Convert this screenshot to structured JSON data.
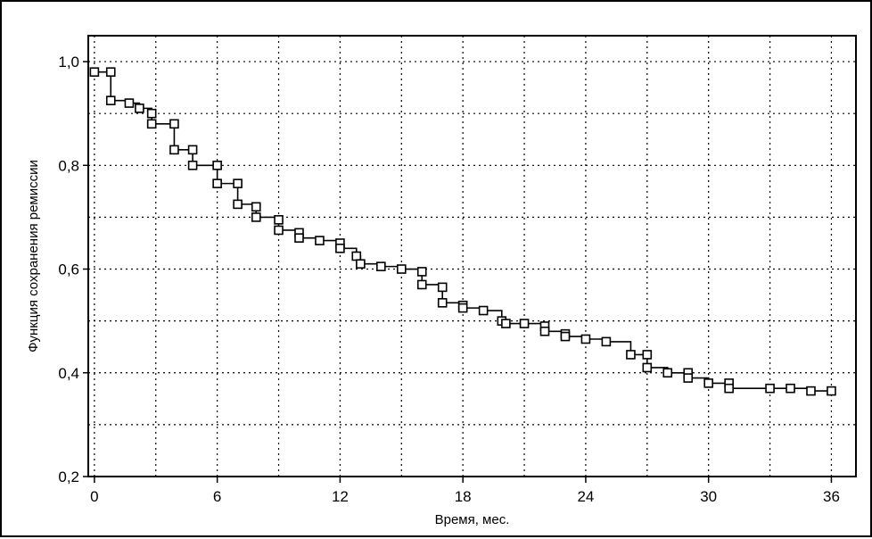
{
  "chart_data": {
    "type": "line",
    "title": "",
    "xlabel": "Время, мес.",
    "ylabel": "Функция сохранения ремиссии",
    "xlim": [
      -0.3,
      37.2
    ],
    "ylim": [
      0.2,
      1.05
    ],
    "xticks": [
      0,
      6,
      12,
      18,
      24,
      30,
      36
    ],
    "xtick_labels": [
      "0",
      "6",
      "12",
      "18",
      "24",
      "30",
      "36"
    ],
    "yticks": [
      0.2,
      0.4,
      0.6,
      0.8,
      1.0
    ],
    "ytick_labels": [
      "0,2",
      "0,4",
      "0,6",
      "0,8",
      "1,0"
    ],
    "grid_y": [
      0.3,
      0.4,
      0.5,
      0.6,
      0.7,
      0.8,
      0.9,
      1.0
    ],
    "grid_x": [
      0,
      3,
      6,
      9,
      12,
      15,
      18,
      21,
      24,
      27,
      30,
      33,
      36
    ],
    "grid": true,
    "series": [
      {
        "x": [
          0,
          0.8,
          0.8,
          1.7,
          2.2,
          2.8,
          2.8,
          3.9,
          3.9,
          4.8,
          4.8,
          6.0,
          6.0,
          7.0,
          7.0,
          7.9,
          7.9,
          9.0,
          9.0,
          10.0,
          10.0,
          11.0,
          12.0,
          12.0,
          12.8,
          13.0,
          14.0,
          15.0,
          16.0,
          16.0,
          17.0,
          17.0,
          18.0,
          18.0,
          19.0,
          19.9,
          20.1,
          21.0,
          22.0,
          22.0,
          23.0,
          23.0,
          24.0,
          25.0,
          26.2,
          27.0,
          27.0,
          28.0,
          29.0,
          29.0,
          30.0,
          31.0,
          31.0,
          33.0,
          34.0,
          35.0,
          36.0
        ],
        "y": [
          0.98,
          0.98,
          0.925,
          0.92,
          0.91,
          0.9,
          0.88,
          0.88,
          0.83,
          0.83,
          0.8,
          0.8,
          0.765,
          0.765,
          0.725,
          0.72,
          0.7,
          0.695,
          0.675,
          0.67,
          0.66,
          0.655,
          0.65,
          0.64,
          0.625,
          0.61,
          0.605,
          0.6,
          0.595,
          0.57,
          0.565,
          0.535,
          0.53,
          0.525,
          0.52,
          0.5,
          0.495,
          0.495,
          0.49,
          0.48,
          0.475,
          0.47,
          0.465,
          0.46,
          0.435,
          0.435,
          0.41,
          0.4,
          0.4,
          0.39,
          0.38,
          0.38,
          0.37,
          0.37,
          0.37,
          0.365,
          0.365
        ]
      }
    ]
  }
}
